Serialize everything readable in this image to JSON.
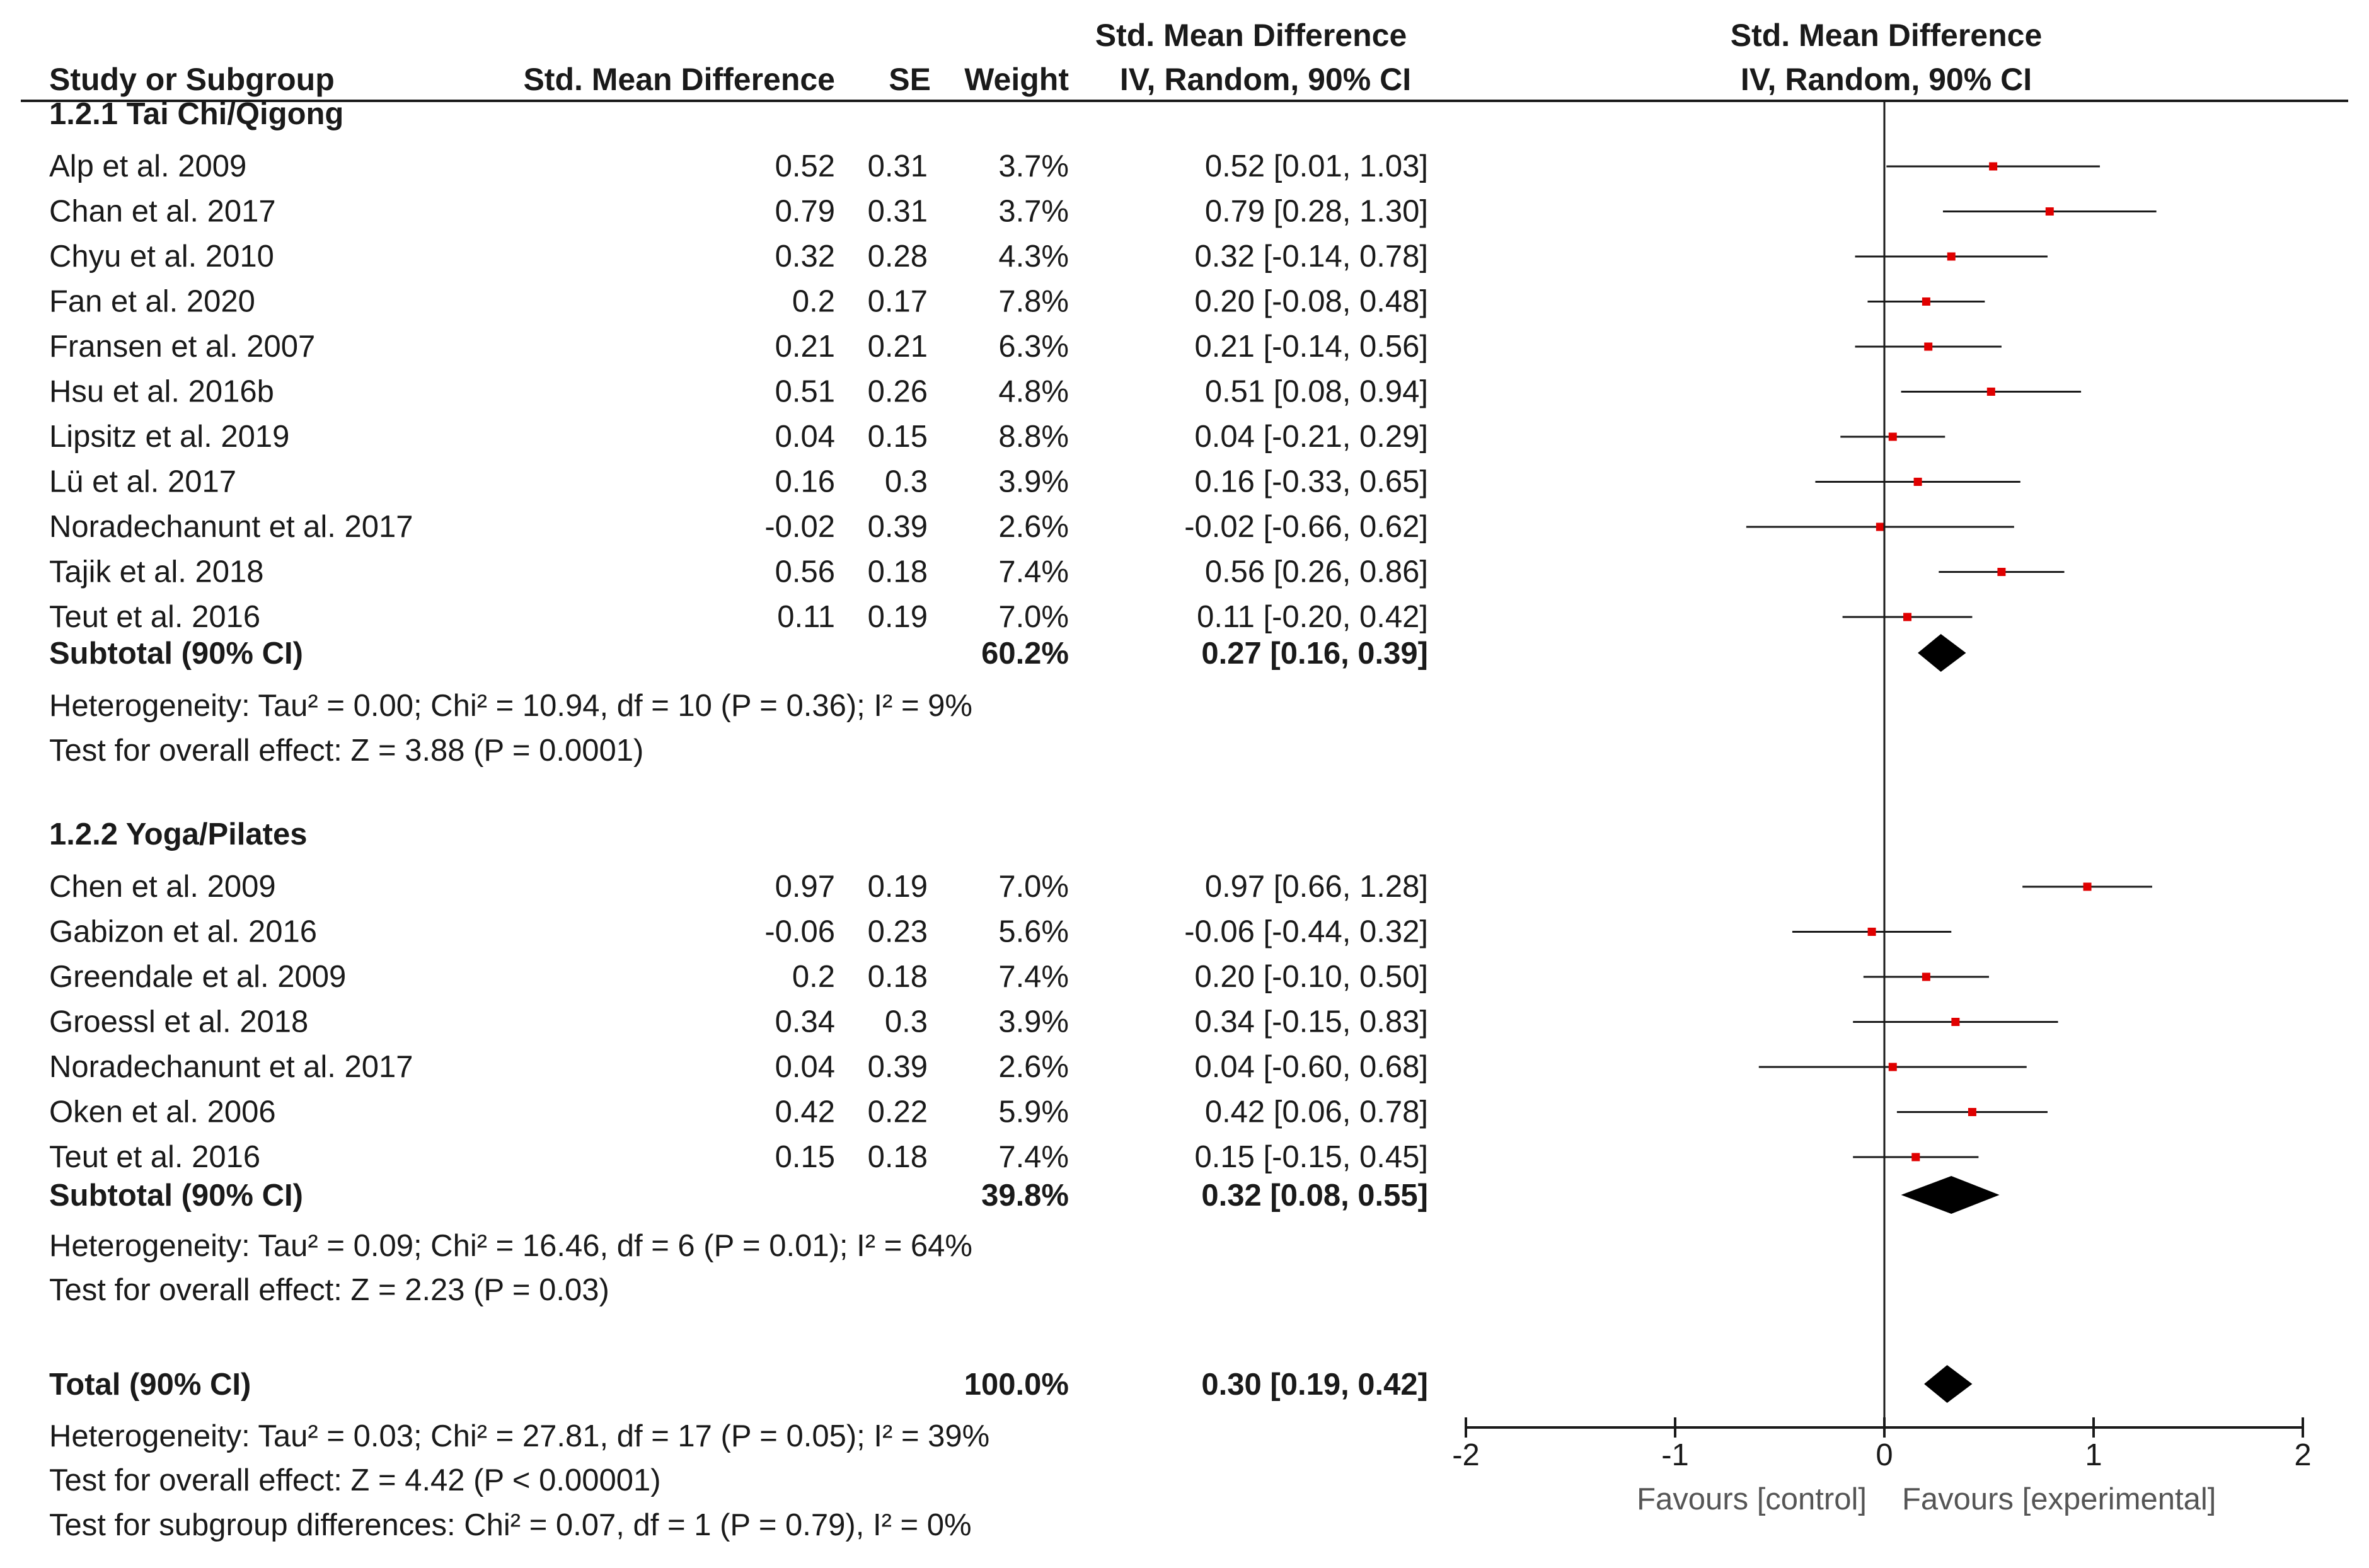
{
  "headers": {
    "study": "Study or Subgroup",
    "smd": "Std. Mean Difference",
    "se": "SE",
    "weight": "Weight",
    "ci_top": "Std. Mean Difference",
    "ci_bottom": "IV, Random, 90% CI",
    "plot_top": "Std. Mean Difference",
    "plot_bottom": "IV, Random, 90% CI"
  },
  "chart_data": {
    "type": "forest",
    "xlim": [
      -2,
      2
    ],
    "ticks": [
      -2,
      -1,
      0,
      1,
      2
    ],
    "tick_labels": [
      "-2",
      "-1",
      "0",
      "1",
      "2"
    ],
    "xlabel_left": "Favours [control]",
    "xlabel_right": "Favours [experimental]",
    "point_color": "#e00000",
    "groups": [
      {
        "title": "1.2.1 Tai Chi/Qigong",
        "studies": [
          {
            "name": "Alp et al. 2009",
            "smd": "0.52",
            "se": "0.31",
            "weight": "3.7%",
            "ci_text": "0.52 [0.01, 1.03]",
            "est": 0.52,
            "lo": 0.01,
            "hi": 1.03
          },
          {
            "name": "Chan et al. 2017",
            "smd": "0.79",
            "se": "0.31",
            "weight": "3.7%",
            "ci_text": "0.79 [0.28, 1.30]",
            "est": 0.79,
            "lo": 0.28,
            "hi": 1.3
          },
          {
            "name": "Chyu et al. 2010",
            "smd": "0.32",
            "se": "0.28",
            "weight": "4.3%",
            "ci_text": "0.32 [-0.14, 0.78]",
            "est": 0.32,
            "lo": -0.14,
            "hi": 0.78
          },
          {
            "name": "Fan et al. 2020",
            "smd": "0.2",
            "se": "0.17",
            "weight": "7.8%",
            "ci_text": "0.20 [-0.08, 0.48]",
            "est": 0.2,
            "lo": -0.08,
            "hi": 0.48
          },
          {
            "name": "Fransen et al. 2007",
            "smd": "0.21",
            "se": "0.21",
            "weight": "6.3%",
            "ci_text": "0.21 [-0.14, 0.56]",
            "est": 0.21,
            "lo": -0.14,
            "hi": 0.56
          },
          {
            "name": "Hsu et al. 2016b",
            "smd": "0.51",
            "se": "0.26",
            "weight": "4.8%",
            "ci_text": "0.51 [0.08, 0.94]",
            "est": 0.51,
            "lo": 0.08,
            "hi": 0.94
          },
          {
            "name": "Lipsitz et al. 2019",
            "smd": "0.04",
            "se": "0.15",
            "weight": "8.8%",
            "ci_text": "0.04 [-0.21, 0.29]",
            "est": 0.04,
            "lo": -0.21,
            "hi": 0.29
          },
          {
            "name": "Lü et al. 2017",
            "smd": "0.16",
            "se": "0.3",
            "weight": "3.9%",
            "ci_text": "0.16 [-0.33, 0.65]",
            "est": 0.16,
            "lo": -0.33,
            "hi": 0.65
          },
          {
            "name": "Noradechanunt et al. 2017",
            "smd": "-0.02",
            "se": "0.39",
            "weight": "2.6%",
            "ci_text": "-0.02 [-0.66, 0.62]",
            "est": -0.02,
            "lo": -0.66,
            "hi": 0.62
          },
          {
            "name": "Tajik et al. 2018",
            "smd": "0.56",
            "se": "0.18",
            "weight": "7.4%",
            "ci_text": "0.56 [0.26, 0.86]",
            "est": 0.56,
            "lo": 0.26,
            "hi": 0.86
          },
          {
            "name": "Teut et al. 2016",
            "smd": "0.11",
            "se": "0.19",
            "weight": "7.0%",
            "ci_text": "0.11 [-0.20, 0.42]",
            "est": 0.11,
            "lo": -0.2,
            "hi": 0.42
          }
        ],
        "subtotal": {
          "label": "Subtotal (90% CI)",
          "weight": "60.2%",
          "ci_text": "0.27 [0.16, 0.39]",
          "est": 0.27,
          "lo": 0.16,
          "hi": 0.39
        },
        "heterogeneity": "Heterogeneity: Tau² = 0.00; Chi² = 10.94, df = 10 (P = 0.36); I² = 9%",
        "overall_effect": "Test for overall effect: Z = 3.88 (P = 0.0001)"
      },
      {
        "title": "1.2.2 Yoga/Pilates",
        "studies": [
          {
            "name": "Chen et al. 2009",
            "smd": "0.97",
            "se": "0.19",
            "weight": "7.0%",
            "ci_text": "0.97 [0.66, 1.28]",
            "est": 0.97,
            "lo": 0.66,
            "hi": 1.28
          },
          {
            "name": "Gabizon et al. 2016",
            "smd": "-0.06",
            "se": "0.23",
            "weight": "5.6%",
            "ci_text": "-0.06 [-0.44, 0.32]",
            "est": -0.06,
            "lo": -0.44,
            "hi": 0.32
          },
          {
            "name": "Greendale et al. 2009",
            "smd": "0.2",
            "se": "0.18",
            "weight": "7.4%",
            "ci_text": "0.20 [-0.10, 0.50]",
            "est": 0.2,
            "lo": -0.1,
            "hi": 0.5
          },
          {
            "name": "Groessl et al. 2018",
            "smd": "0.34",
            "se": "0.3",
            "weight": "3.9%",
            "ci_text": "0.34 [-0.15, 0.83]",
            "est": 0.34,
            "lo": -0.15,
            "hi": 0.83
          },
          {
            "name": "Noradechanunt et al. 2017",
            "smd": "0.04",
            "se": "0.39",
            "weight": "2.6%",
            "ci_text": "0.04 [-0.60, 0.68]",
            "est": 0.04,
            "lo": -0.6,
            "hi": 0.68
          },
          {
            "name": "Oken et al. 2006",
            "smd": "0.42",
            "se": "0.22",
            "weight": "5.9%",
            "ci_text": "0.42 [0.06, 0.78]",
            "est": 0.42,
            "lo": 0.06,
            "hi": 0.78
          },
          {
            "name": "Teut et al. 2016",
            "smd": "0.15",
            "se": "0.18",
            "weight": "7.4%",
            "ci_text": "0.15 [-0.15, 0.45]",
            "est": 0.15,
            "lo": -0.15,
            "hi": 0.45
          }
        ],
        "subtotal": {
          "label": "Subtotal (90% CI)",
          "weight": "39.8%",
          "ci_text": "0.32 [0.08, 0.55]",
          "est": 0.32,
          "lo": 0.08,
          "hi": 0.55
        },
        "heterogeneity": "Heterogeneity: Tau² = 0.09; Chi² = 16.46, df = 6 (P = 0.01); I² = 64%",
        "overall_effect": "Test for overall effect: Z = 2.23 (P = 0.03)"
      }
    ],
    "total": {
      "label": "Total (90% CI)",
      "weight": "100.0%",
      "ci_text": "0.30 [0.19, 0.42]",
      "est": 0.3,
      "lo": 0.19,
      "hi": 0.42,
      "heterogeneity": "Heterogeneity: Tau² = 0.03; Chi² = 27.81, df = 17 (P = 0.05); I² = 39%",
      "overall_effect": "Test for overall effect: Z = 4.42 (P < 0.00001)",
      "subgroup_diff": "Test for subgroup differences: Chi² = 0.07, df = 1 (P = 0.79), I² = 0%"
    }
  }
}
